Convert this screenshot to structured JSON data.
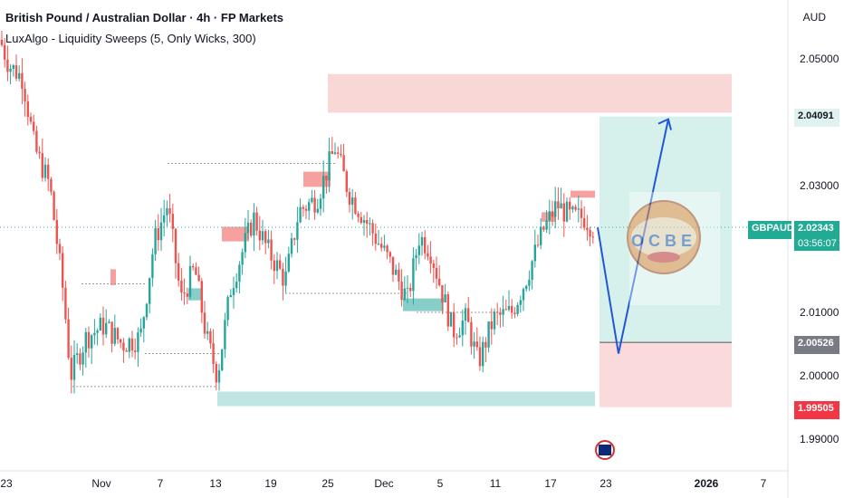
{
  "header": {
    "title": "British Pound / Australian Dollar · 4h · FP Markets",
    "indicator": "LuxAlgo - Liquidity Sweeps (5, Only Wicks, 300)",
    "currency": "AUD"
  },
  "chart_data": {
    "type": "candlestick",
    "symbol": "GBPAUD",
    "last_price": "2.02343",
    "countdown": "03:56:07",
    "price_axis_ticks": [
      "2.05000",
      "2.03000",
      "2.01000",
      "2.00000",
      "1.99000"
    ],
    "price_tick_values": [
      2.05,
      2.03,
      2.01,
      2.0,
      1.99
    ],
    "ylim": [
      1.984,
      2.058
    ],
    "time_axis_ticks": [
      "23",
      "Nov",
      "7",
      "13",
      "19",
      "25",
      "Dec",
      "5",
      "11",
      "17",
      "23",
      "2026",
      "7"
    ],
    "markers": {
      "target": "2.04091",
      "entry": "2.00526",
      "stop": "1.99505"
    },
    "trade_levels": {
      "target": 2.04091,
      "entry": 2.00526,
      "stop": 1.99505
    },
    "projection_low": 2.0035,
    "watermark_text": "OCBE",
    "colors": {
      "up": "#26a69a",
      "down": "#ef5350",
      "zone_red": "#f8c6c6",
      "zone_green": "#b2dfdb",
      "target_zone": "#cfeee8",
      "stop_zone": "#f9d4d4",
      "arrow": "#1f57d8",
      "current_price": "#22ab94",
      "entry_badge": "#787b86",
      "stop_badge": "#f23645",
      "target_badge": "#e0f2ef"
    }
  }
}
